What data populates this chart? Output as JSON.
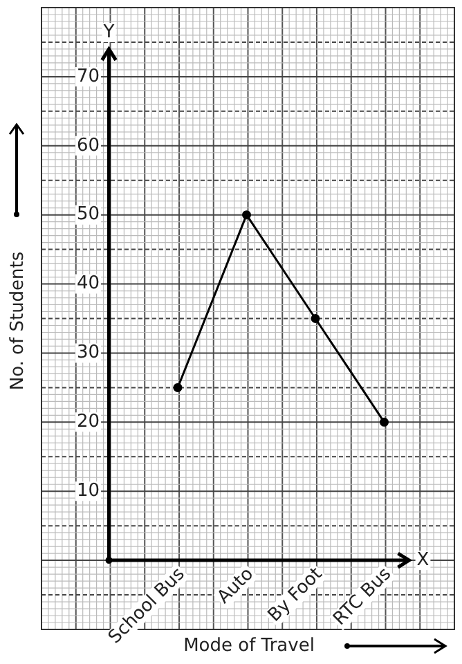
{
  "chart_data": {
    "type": "line",
    "xlabel": "Mode of Travel",
    "ylabel": "No. of Students",
    "categories": [
      "School Bus",
      "Auto",
      "By Foot",
      "RTC Bus"
    ],
    "series": [
      {
        "color": "#000000",
        "values": [
          25,
          50,
          35,
          20
        ]
      }
    ],
    "ylim": [
      -10,
      80
    ],
    "yticks": [
      10,
      20,
      30,
      40,
      50,
      60,
      70
    ],
    "grid": true,
    "marker": "circle",
    "line_style": "solid",
    "legend": false,
    "annotations": [
      "Y",
      "X"
    ]
  }
}
